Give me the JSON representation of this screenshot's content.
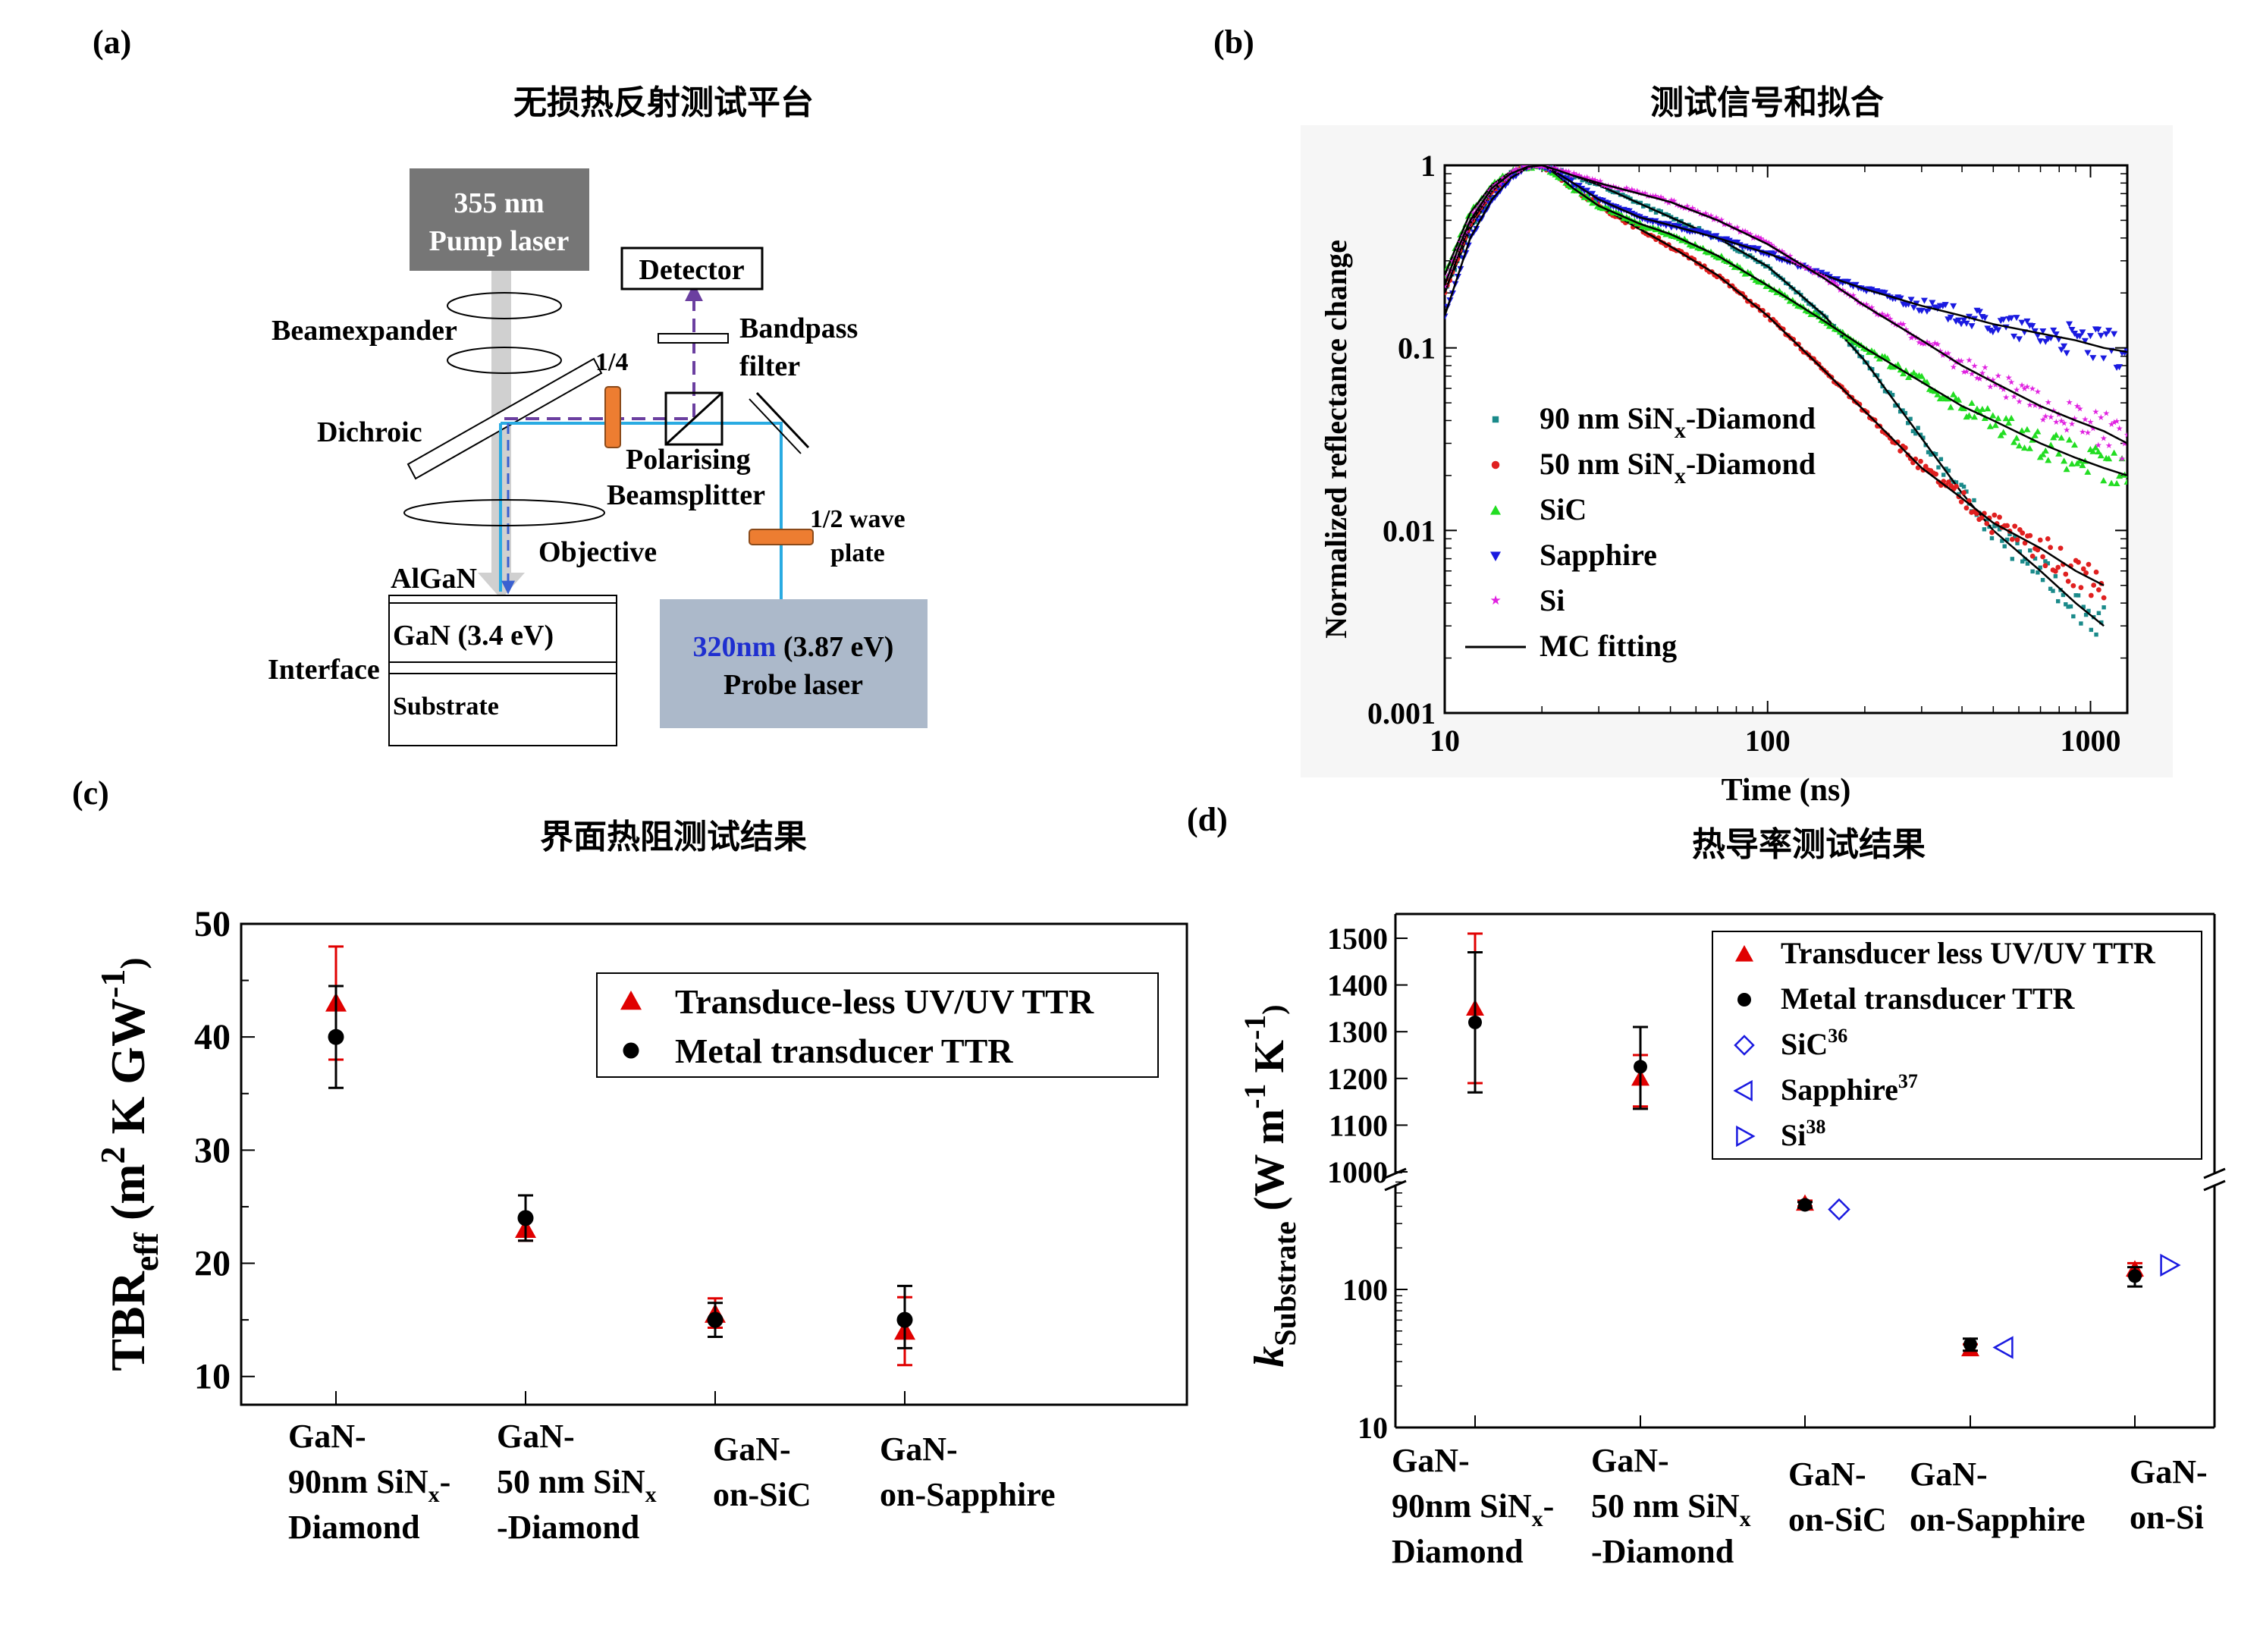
{
  "panels": {
    "a": {
      "label": "(a)",
      "title": "无损热反射测试平台",
      "pump_laser": [
        "355 nm",
        "Pump laser"
      ],
      "probe_laser_wavelength": "320nm",
      "probe_laser_energy": " (3.87 eV)",
      "probe_laser_name": "Probe laser",
      "detector": "Detector",
      "beamexpander": "Beamexpander",
      "bandpass": [
        "Bandpass",
        "filter"
      ],
      "quarter": "1/4",
      "dichroic": "Dichroic",
      "polarising": [
        "Polarising",
        "Beamsplitter"
      ],
      "objective": "Objective",
      "half_wave": [
        "1/2 wave",
        "plate"
      ],
      "algan": "AlGaN",
      "gan": "GaN (3.4 eV)",
      "interface": "Interface",
      "substrate": "Substrate",
      "colors": {
        "pump": "#767676",
        "probe": "#acb9ca",
        "probe_text_blue": "#1f2fd0",
        "beam": "#29abe2",
        "return": "#6b3fa0",
        "plate": "#ed7d31"
      }
    },
    "b": {
      "label": "(b)",
      "title": "测试信号和拟合"
    },
    "c": {
      "label": "(c)",
      "title": "界面热阻测试结果"
    },
    "d": {
      "label": "(d)",
      "title": "热导率测试结果"
    }
  },
  "chart_data": [
    {
      "panel": "b",
      "type": "scatter",
      "xscale": "log",
      "yscale": "log",
      "xlim": [
        10,
        1300
      ],
      "ylim": [
        0.001,
        1
      ],
      "xlabel": "Time (ns)",
      "ylabel": "Normalized reflectance change",
      "xticks": [
        "10",
        "100",
        "1000"
      ],
      "yticks": [
        "0.001",
        "0.01",
        "0.1",
        "1"
      ],
      "legend_position": "lower-left",
      "series": [
        {
          "name": "90 nm SiNx-Diamond",
          "name_main": "90 nm SiN",
          "name_sub": "x",
          "name_tail": "-Diamond",
          "marker": "square",
          "color": "#1a8a8a",
          "x": [
            10,
            11,
            12,
            14,
            16,
            18,
            20,
            22,
            25,
            30,
            40,
            50,
            70,
            100,
            150,
            200,
            300,
            400,
            500,
            700,
            900,
            1100
          ],
          "y": [
            0.2,
            0.3,
            0.45,
            0.7,
            0.9,
            0.98,
            1.0,
            0.95,
            0.88,
            0.78,
            0.62,
            0.52,
            0.4,
            0.28,
            0.15,
            0.085,
            0.032,
            0.016,
            0.01,
            0.006,
            0.004,
            0.003
          ]
        },
        {
          "name": "50 nm SiNx-Diamond",
          "name_main": "50 nm SiN",
          "name_sub": "x",
          "name_tail": "-Diamond",
          "marker": "circle",
          "color": "#e02020",
          "x": [
            10,
            11,
            12,
            14,
            16,
            18,
            20,
            22,
            25,
            30,
            40,
            50,
            70,
            100,
            150,
            200,
            300,
            400,
            500,
            700,
            900,
            1100
          ],
          "y": [
            0.2,
            0.32,
            0.48,
            0.72,
            0.9,
            0.98,
            1.0,
            0.9,
            0.75,
            0.6,
            0.45,
            0.36,
            0.25,
            0.15,
            0.075,
            0.045,
            0.022,
            0.015,
            0.011,
            0.008,
            0.006,
            0.005
          ]
        },
        {
          "name": "SiC",
          "name_main": "SiC",
          "marker": "triangle-up",
          "color": "#22dd22",
          "x": [
            10,
            11,
            12,
            14,
            16,
            18,
            20,
            22,
            25,
            30,
            40,
            50,
            70,
            100,
            150,
            200,
            300,
            400,
            500,
            700,
            900,
            1100,
            1300
          ],
          "y": [
            0.25,
            0.38,
            0.55,
            0.78,
            0.92,
            0.98,
            1.0,
            0.9,
            0.75,
            0.6,
            0.48,
            0.42,
            0.32,
            0.22,
            0.14,
            0.1,
            0.065,
            0.048,
            0.04,
            0.03,
            0.025,
            0.022,
            0.02
          ]
        },
        {
          "name": "Sapphire",
          "name_main": "Sapphire",
          "marker": "triangle-down",
          "color": "#1a1ae0",
          "x": [
            10,
            11,
            12,
            14,
            16,
            18,
            20,
            22,
            25,
            30,
            40,
            50,
            70,
            100,
            150,
            200,
            300,
            400,
            500,
            700,
            900,
            1100,
            1300
          ],
          "y": [
            0.15,
            0.25,
            0.4,
            0.65,
            0.85,
            0.97,
            1.0,
            0.92,
            0.8,
            0.65,
            0.52,
            0.47,
            0.4,
            0.33,
            0.25,
            0.21,
            0.17,
            0.15,
            0.135,
            0.12,
            0.11,
            0.1,
            0.095
          ]
        },
        {
          "name": "Si",
          "name_main": "Si",
          "marker": "star",
          "color": "#e020e0",
          "x": [
            10,
            11,
            12,
            14,
            16,
            18,
            20,
            22,
            25,
            30,
            40,
            50,
            70,
            100,
            150,
            200,
            300,
            400,
            500,
            700,
            900,
            1100,
            1300
          ],
          "y": [
            0.22,
            0.35,
            0.5,
            0.75,
            0.9,
            0.98,
            1.0,
            0.95,
            0.88,
            0.8,
            0.7,
            0.63,
            0.5,
            0.37,
            0.24,
            0.17,
            0.11,
            0.08,
            0.065,
            0.048,
            0.04,
            0.035,
            0.03
          ]
        },
        {
          "name": "MC fitting",
          "name_main": "MC fitting",
          "marker": "line",
          "color": "#000000"
        }
      ]
    },
    {
      "panel": "c",
      "type": "scatter",
      "ylabel_main": "TBR",
      "ylabel_sub": "eff",
      "ylabel_units_a": " (m",
      "ylabel_units_sup1": "2",
      "ylabel_units_b": " K GW",
      "ylabel_units_sup2": "-1",
      "ylabel_units_c": ")",
      "ylim": [
        7.5,
        50
      ],
      "yticks": [
        "10",
        "20",
        "30",
        "40",
        "50"
      ],
      "legend_position": "top-right",
      "categories": [
        [
          "GaN-",
          "90nm SiN|x|-",
          "Diamond"
        ],
        [
          "GaN-",
          "50 nm SiN|x|",
          "-Diamond"
        ],
        [
          "GaN-",
          "on-SiC"
        ],
        [
          "GaN-",
          "on-Sapphire"
        ]
      ],
      "series": [
        {
          "name": "Transduce-less UV/UV TTR",
          "marker": "triangle-up",
          "color": "#e00000",
          "values": [
            43,
            23,
            15.5,
            14
          ],
          "err_low": [
            5,
            1,
            1.2,
            3
          ],
          "err_high": [
            5,
            1,
            1.4,
            3
          ]
        },
        {
          "name": "Metal transducer TTR",
          "marker": "circle",
          "color": "#000000",
          "values": [
            40,
            24,
            15,
            15
          ],
          "err_low": [
            4.5,
            2,
            1.5,
            2.5
          ],
          "err_high": [
            4.5,
            2,
            1.5,
            3
          ]
        }
      ]
    },
    {
      "panel": "d",
      "type": "scatter",
      "ylabel_main": "k",
      "ylabel_sub": "Substrate",
      "ylabel_units_a": " (W m",
      "ylabel_units_sup1": "-1",
      "ylabel_units_b": " K",
      "ylabel_units_sup2": "-1",
      "ylabel_units_c": ")",
      "yscale": "log, broken axis",
      "ylim_lower": [
        10,
        800
      ],
      "ylim_upper": [
        1000,
        1500
      ],
      "yticks_lower": [
        "10",
        "100"
      ],
      "yticks_upper": [
        "1000",
        "1100",
        "1200",
        "1300",
        "1400",
        "1500"
      ],
      "legend_position": "top-right",
      "categories": [
        [
          "GaN-",
          "90nm SiN|x|-",
          "Diamond"
        ],
        [
          "GaN-",
          "50 nm SiN|x|",
          "-Diamond"
        ],
        [
          "GaN-",
          "on-SiC"
        ],
        [
          "GaN-",
          "on-Sapphire"
        ],
        [
          "GaN-",
          "on-Si"
        ]
      ],
      "series": [
        {
          "name": "Transducer less UV/UV TTR",
          "name_main": "Transducer less UV/UV TTR",
          "marker": "triangle-up",
          "color": "#e00000",
          "values": [
            1350,
            1200,
            420,
            37,
            140
          ],
          "err_low": [
            160,
            60,
            20,
            3,
            15
          ],
          "err_high": [
            160,
            50,
            20,
            3,
            15
          ]
        },
        {
          "name": "Metal transducer TTR",
          "name_main": "Metal transducer TTR",
          "marker": "circle",
          "color": "#000000",
          "values": [
            1320,
            1225,
            410,
            40,
            125
          ],
          "err_low": [
            150,
            90,
            20,
            4,
            20
          ],
          "err_high": [
            150,
            85,
            20,
            4,
            20
          ]
        },
        {
          "name": "SiC36",
          "name_main": "SiC",
          "name_sup": "36",
          "marker": "diamond-open",
          "color": "#1a1ae0",
          "category": 2,
          "values": [
            380
          ]
        },
        {
          "name": "Sapphire37",
          "name_main": "Sapphire",
          "name_sup": "37",
          "marker": "triangle-left-open",
          "color": "#1a1ae0",
          "category": 3,
          "values": [
            38
          ]
        },
        {
          "name": "Si38",
          "name_main": "Si",
          "name_sup": "38",
          "marker": "triangle-right-open",
          "color": "#1a1ae0",
          "category": 4,
          "values": [
            150
          ]
        }
      ]
    }
  ]
}
